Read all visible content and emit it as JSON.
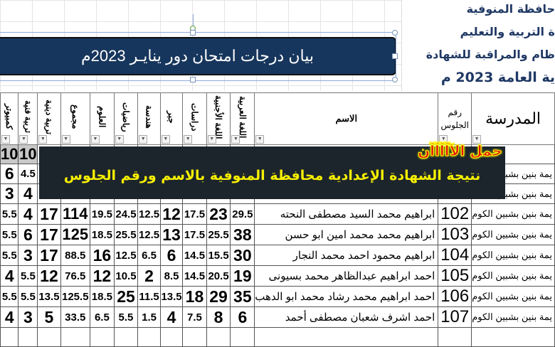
{
  "header_lines": [
    "حافظة المنوفية",
    "ة التربية والتعليم",
    "ظام والمراقبة للشهادة",
    "ية العامة 2023 م"
  ],
  "banner_title": "بيان درجات امتحان دور ينايـر 2023م",
  "columns": [
    "كمبيوتر",
    "تربية فنية",
    "تربية دينية",
    "مجموع",
    "العلوم",
    "رياضيات",
    "هندسة",
    "جبر",
    "دراسات",
    "اللغة الأجنبية",
    "اللغة العربية",
    "الاسم",
    "رقم الجلوس",
    "المدرسة"
  ],
  "max_row": [
    "10",
    "10"
  ],
  "hidden_rows": [
    {
      "cells": [
        "6",
        "4.5"
      ],
      "school": "يمة بنين بشبين"
    },
    {
      "cells": [
        "3",
        "4"
      ],
      "school": "يمة بنين بشبين"
    }
  ],
  "rows": [
    {
      "cells": [
        "5.5",
        "4",
        "17",
        "114",
        "19.5",
        "24.5",
        "12.5",
        "12",
        "17.5",
        "23",
        "29.5"
      ],
      "name": "ابراهيم محمد السيد مصطفى النحته",
      "seat": "102",
      "school": "يمة بنين بشبين الكوم"
    },
    {
      "cells": [
        "5.5",
        "6",
        "17",
        "125",
        "18.5",
        "25.5",
        "12.5",
        "13",
        "17.5",
        "25.5",
        "38"
      ],
      "name": "ابراهيم محمد محمد امين ابو حسن",
      "seat": "103",
      "school": "يمة بنين بشبين الكوم"
    },
    {
      "cells": [
        "5.5",
        "3",
        "17",
        "88.5",
        "16",
        "12.5",
        "6.5",
        "6",
        "14.5",
        "15.5",
        "30"
      ],
      "name": "ابراهيم محمود احمد محمد النجار",
      "seat": "104",
      "school": "يمة بنين بشبين الكوم"
    },
    {
      "cells": [
        "4",
        "5.5",
        "12",
        "76.5",
        "12",
        "10.5",
        "2",
        "8.5",
        "14.5",
        "20.5",
        "19"
      ],
      "name": "احمد ابراهيم عبدالظاهر محمد بسيونى",
      "seat": "105",
      "school": "يمة بنين بشبين الكوم"
    },
    {
      "cells": [
        "5.5",
        "5.5",
        "13.5",
        "125.5",
        "18.5",
        "25",
        "11.5",
        "13.5",
        "18",
        "29",
        "35"
      ],
      "name": "احمد ابراهيم محمد رشاد محمد ابو الدهب",
      "seat": "106",
      "school": "يمة بنين بشبين الكوم"
    },
    {
      "cells": [
        "4",
        "3",
        "5",
        "33.5",
        "6.5",
        "5.5",
        "1.5",
        "4",
        "7.5",
        "8",
        "6"
      ],
      "name": "احمد اشرف شعبان مصطفى أحمد",
      "seat": "107",
      "school": "يمة بنين بشبين الكوم"
    }
  ],
  "promo": {
    "now": "حمل الآآآآآن",
    "text": "نتيجة الشهادة الإعدادية محافظة المنوفية بالاسم ورقم الجلوس"
  },
  "colors": {
    "banner": "#17365d",
    "promo_bg": "#1c252c",
    "promo_text": "#f7f000",
    "now_text": "#e01010"
  }
}
